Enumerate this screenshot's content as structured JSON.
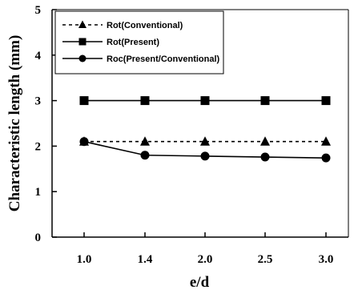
{
  "chart_data": {
    "type": "line",
    "categories": [
      "1.0",
      "1.4",
      "2.0",
      "2.5",
      "3.0"
    ],
    "series": [
      {
        "name": "Rot(Conventional)",
        "values": [
          2.1,
          2.1,
          2.1,
          2.1,
          2.1
        ],
        "marker": "triangle",
        "line": "dashed",
        "color": "#000000"
      },
      {
        "name": "Rot(Present)",
        "values": [
          3.0,
          3.0,
          3.0,
          3.0,
          3.0
        ],
        "marker": "square",
        "line": "solid",
        "color": "#000000"
      },
      {
        "name": "Roc(Present/Conventional)",
        "values": [
          2.1,
          1.8,
          1.78,
          1.76,
          1.74
        ],
        "marker": "circle",
        "line": "solid",
        "color": "#000000"
      }
    ],
    "y_ticks": [
      "0",
      "1",
      "2",
      "3",
      "4",
      "5"
    ],
    "title": "",
    "xlabel": "e/d",
    "ylabel": "Characteristic length (mm)",
    "ylim": [
      0,
      5
    ],
    "grid": false,
    "legend": "top-left"
  }
}
